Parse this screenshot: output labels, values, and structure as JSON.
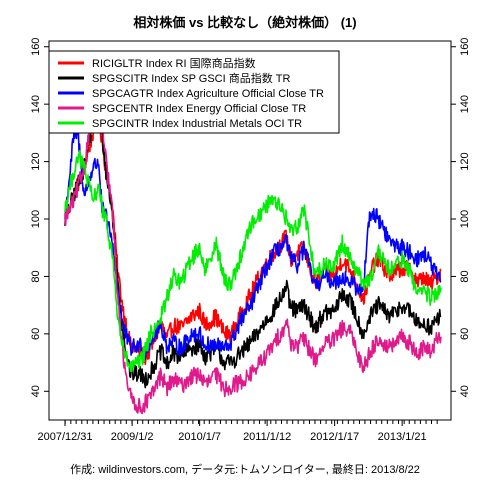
{
  "chart_data": {
    "type": "line",
    "title": "相対株価 vs 比較なし（絶対株価） (1)",
    "caption": "作成: wildinvestors.com, データ元:トムソンロイター, 最終日: 2013/8/22",
    "xlabel": "",
    "ylabel": "",
    "x_range": [
      "2007-12-31",
      "2013-08-22"
    ],
    "ylim": [
      30,
      162
    ],
    "y_ticks": [
      40,
      60,
      80,
      100,
      120,
      140,
      160
    ],
    "x_ticks": [
      {
        "date": "2007-12-31",
        "label": "2007/12/31"
      },
      {
        "date": "2009-01-02",
        "label": "2009/1/2"
      },
      {
        "date": "2010-01-07",
        "label": "2010/1/7"
      },
      {
        "date": "2011-01-12",
        "label": "2011/1/12"
      },
      {
        "date": "2012-01-17",
        "label": "2012/1/17"
      },
      {
        "date": "2013-01-21",
        "label": "2013/1/21"
      }
    ],
    "legend_position": "top-left",
    "grid": false,
    "series": [
      {
        "name": "RICIGLTR Index RI 国際商品指数",
        "color": "#ff0000",
        "points": [
          [
            "2007-12-31",
            100
          ],
          [
            "2008-02-15",
            108
          ],
          [
            "2008-04-15",
            118
          ],
          [
            "2008-06-01",
            130
          ],
          [
            "2008-07-03",
            136
          ],
          [
            "2008-07-20",
            128
          ],
          [
            "2008-08-15",
            115
          ],
          [
            "2008-09-15",
            105
          ],
          [
            "2008-10-15",
            82
          ],
          [
            "2008-11-15",
            68
          ],
          [
            "2008-12-24",
            56
          ],
          [
            "2009-02-15",
            54
          ],
          [
            "2009-03-15",
            52
          ],
          [
            "2009-04-15",
            55
          ],
          [
            "2009-06-10",
            64
          ],
          [
            "2009-07-10",
            58
          ],
          [
            "2009-08-15",
            63
          ],
          [
            "2009-10-01",
            62
          ],
          [
            "2009-11-20",
            66
          ],
          [
            "2010-01-07",
            68
          ],
          [
            "2010-02-08",
            63
          ],
          [
            "2010-04-05",
            66
          ],
          [
            "2010-05-25",
            60
          ],
          [
            "2010-07-01",
            60
          ],
          [
            "2010-08-15",
            66
          ],
          [
            "2010-10-15",
            74
          ],
          [
            "2010-12-31",
            84
          ],
          [
            "2011-02-15",
            88
          ],
          [
            "2011-04-29",
            94
          ],
          [
            "2011-05-20",
            86
          ],
          [
            "2011-06-30",
            88
          ],
          [
            "2011-08-01",
            90
          ],
          [
            "2011-10-04",
            77
          ],
          [
            "2011-11-15",
            82
          ],
          [
            "2012-01-17",
            80
          ],
          [
            "2012-02-28",
            86
          ],
          [
            "2012-04-15",
            82
          ],
          [
            "2012-06-21",
            72
          ],
          [
            "2012-08-15",
            84
          ],
          [
            "2012-09-14",
            86
          ],
          [
            "2012-11-15",
            80
          ],
          [
            "2013-01-21",
            83
          ],
          [
            "2013-03-15",
            82
          ],
          [
            "2013-04-18",
            78
          ],
          [
            "2013-05-20",
            80
          ],
          [
            "2013-06-24",
            77
          ],
          [
            "2013-07-31",
            80
          ],
          [
            "2013-08-22",
            82
          ]
        ]
      },
      {
        "name": "SPGSCITR Index SP GSCI 商品指数 TR",
        "color": "#000000",
        "points": [
          [
            "2007-12-31",
            100
          ],
          [
            "2008-02-15",
            108
          ],
          [
            "2008-04-15",
            118
          ],
          [
            "2008-06-01",
            134
          ],
          [
            "2008-07-03",
            140
          ],
          [
            "2008-07-20",
            130
          ],
          [
            "2008-08-15",
            115
          ],
          [
            "2008-09-15",
            102
          ],
          [
            "2008-10-15",
            78
          ],
          [
            "2008-11-15",
            60
          ],
          [
            "2008-12-24",
            46
          ],
          [
            "2009-02-15",
            46
          ],
          [
            "2009-03-15",
            44
          ],
          [
            "2009-04-15",
            47
          ],
          [
            "2009-06-10",
            54
          ],
          [
            "2009-07-10",
            49
          ],
          [
            "2009-08-15",
            53
          ],
          [
            "2009-10-01",
            52
          ],
          [
            "2009-11-20",
            55
          ],
          [
            "2010-01-07",
            56
          ],
          [
            "2010-02-08",
            52
          ],
          [
            "2010-04-05",
            55
          ],
          [
            "2010-05-25",
            50
          ],
          [
            "2010-07-01",
            50
          ],
          [
            "2010-08-15",
            53
          ],
          [
            "2010-10-15",
            57
          ],
          [
            "2010-12-31",
            64
          ],
          [
            "2011-02-15",
            68
          ],
          [
            "2011-04-29",
            76
          ],
          [
            "2011-05-20",
            69
          ],
          [
            "2011-06-30",
            68
          ],
          [
            "2011-08-01",
            70
          ],
          [
            "2011-10-04",
            62
          ],
          [
            "2011-11-15",
            67
          ],
          [
            "2012-01-17",
            68
          ],
          [
            "2012-02-28",
            74
          ],
          [
            "2012-04-15",
            71
          ],
          [
            "2012-06-21",
            60
          ],
          [
            "2012-08-15",
            68
          ],
          [
            "2012-09-14",
            70
          ],
          [
            "2012-11-15",
            66
          ],
          [
            "2013-01-21",
            70
          ],
          [
            "2013-03-15",
            67
          ],
          [
            "2013-04-18",
            63
          ],
          [
            "2013-05-20",
            64
          ],
          [
            "2013-06-24",
            62
          ],
          [
            "2013-07-31",
            65
          ],
          [
            "2013-08-22",
            66
          ]
        ]
      },
      {
        "name": "SPGCAGTR Index Agriculture Official Close TR",
        "color": "#0000ff",
        "points": [
          [
            "2007-12-31",
            100
          ],
          [
            "2008-02-15",
            128
          ],
          [
            "2008-03-10",
            130
          ],
          [
            "2008-04-15",
            108
          ],
          [
            "2008-06-01",
            118
          ],
          [
            "2008-07-03",
            120
          ],
          [
            "2008-07-20",
            104
          ],
          [
            "2008-08-15",
            100
          ],
          [
            "2008-09-15",
            92
          ],
          [
            "2008-10-15",
            76
          ],
          [
            "2008-11-15",
            62
          ],
          [
            "2008-12-24",
            55
          ],
          [
            "2009-02-15",
            56
          ],
          [
            "2009-03-15",
            54
          ],
          [
            "2009-04-15",
            58
          ],
          [
            "2009-06-10",
            63
          ],
          [
            "2009-07-10",
            56
          ],
          [
            "2009-08-15",
            57
          ],
          [
            "2009-10-01",
            55
          ],
          [
            "2009-11-20",
            60
          ],
          [
            "2010-01-07",
            60
          ],
          [
            "2010-02-08",
            56
          ],
          [
            "2010-04-05",
            56
          ],
          [
            "2010-05-25",
            55
          ],
          [
            "2010-07-01",
            57
          ],
          [
            "2010-08-15",
            64
          ],
          [
            "2010-10-15",
            70
          ],
          [
            "2010-12-31",
            82
          ],
          [
            "2011-02-15",
            88
          ],
          [
            "2011-04-29",
            92
          ],
          [
            "2011-05-20",
            86
          ],
          [
            "2011-06-30",
            84
          ],
          [
            "2011-08-01",
            90
          ],
          [
            "2011-10-04",
            76
          ],
          [
            "2011-11-15",
            80
          ],
          [
            "2012-01-17",
            78
          ],
          [
            "2012-02-28",
            80
          ],
          [
            "2012-04-15",
            78
          ],
          [
            "2012-06-21",
            74
          ],
          [
            "2012-07-20",
            100
          ],
          [
            "2012-08-15",
            102
          ],
          [
            "2012-09-14",
            100
          ],
          [
            "2012-11-15",
            92
          ],
          [
            "2013-01-21",
            90
          ],
          [
            "2013-03-15",
            88
          ],
          [
            "2013-04-18",
            86
          ],
          [
            "2013-05-20",
            88
          ],
          [
            "2013-06-24",
            85
          ],
          [
            "2013-07-31",
            80
          ],
          [
            "2013-08-22",
            78
          ]
        ]
      },
      {
        "name": "SPGCENTR Index Energy Official Close TR",
        "color": "#e0198c",
        "points": [
          [
            "2007-12-31",
            100
          ],
          [
            "2008-02-15",
            106
          ],
          [
            "2008-04-15",
            118
          ],
          [
            "2008-06-01",
            140
          ],
          [
            "2008-07-03",
            146
          ],
          [
            "2008-07-20",
            134
          ],
          [
            "2008-08-15",
            118
          ],
          [
            "2008-09-15",
            104
          ],
          [
            "2008-10-15",
            72
          ],
          [
            "2008-11-15",
            52
          ],
          [
            "2008-12-24",
            38
          ],
          [
            "2009-01-20",
            36
          ],
          [
            "2009-02-15",
            34
          ],
          [
            "2009-03-15",
            36
          ],
          [
            "2009-04-15",
            38
          ],
          [
            "2009-06-10",
            46
          ],
          [
            "2009-07-10",
            41
          ],
          [
            "2009-08-15",
            44
          ],
          [
            "2009-10-01",
            42
          ],
          [
            "2009-11-20",
            45
          ],
          [
            "2010-01-07",
            46
          ],
          [
            "2010-02-08",
            42
          ],
          [
            "2010-04-05",
            46
          ],
          [
            "2010-05-25",
            41
          ],
          [
            "2010-07-01",
            42
          ],
          [
            "2010-08-15",
            43
          ],
          [
            "2010-10-15",
            46
          ],
          [
            "2010-12-31",
            52
          ],
          [
            "2011-02-15",
            56
          ],
          [
            "2011-04-29",
            64
          ],
          [
            "2011-05-20",
            57
          ],
          [
            "2011-06-30",
            56
          ],
          [
            "2011-08-01",
            58
          ],
          [
            "2011-10-04",
            51
          ],
          [
            "2011-11-15",
            56
          ],
          [
            "2012-01-17",
            58
          ],
          [
            "2012-02-28",
            62
          ],
          [
            "2012-04-15",
            60
          ],
          [
            "2012-06-21",
            48
          ],
          [
            "2012-08-15",
            56
          ],
          [
            "2012-09-14",
            58
          ],
          [
            "2012-11-15",
            55
          ],
          [
            "2013-01-21",
            59
          ],
          [
            "2013-03-15",
            56
          ],
          [
            "2013-04-18",
            53
          ],
          [
            "2013-05-20",
            55
          ],
          [
            "2013-06-24",
            54
          ],
          [
            "2013-07-31",
            58
          ],
          [
            "2013-08-22",
            59
          ]
        ]
      },
      {
        "name": "SPGCINTR Index Industrial Metals OCI TR",
        "color": "#00ee00",
        "points": [
          [
            "2007-12-31",
            104
          ],
          [
            "2008-02-15",
            116
          ],
          [
            "2008-03-10",
            122
          ],
          [
            "2008-04-15",
            118
          ],
          [
            "2008-06-01",
            106
          ],
          [
            "2008-07-03",
            112
          ],
          [
            "2008-07-20",
            104
          ],
          [
            "2008-08-15",
            98
          ],
          [
            "2008-09-15",
            88
          ],
          [
            "2008-10-15",
            66
          ],
          [
            "2008-11-15",
            54
          ],
          [
            "2008-12-24",
            48
          ],
          [
            "2009-02-15",
            50
          ],
          [
            "2009-03-15",
            54
          ],
          [
            "2009-04-15",
            60
          ],
          [
            "2009-06-10",
            66
          ],
          [
            "2009-07-10",
            72
          ],
          [
            "2009-08-15",
            80
          ],
          [
            "2009-10-01",
            78
          ],
          [
            "2009-11-20",
            86
          ],
          [
            "2010-01-07",
            90
          ],
          [
            "2010-02-08",
            82
          ],
          [
            "2010-04-05",
            92
          ],
          [
            "2010-05-25",
            78
          ],
          [
            "2010-07-01",
            78
          ],
          [
            "2010-08-15",
            86
          ],
          [
            "2010-10-15",
            98
          ],
          [
            "2010-12-31",
            104
          ],
          [
            "2011-02-15",
            108
          ],
          [
            "2011-04-29",
            100
          ],
          [
            "2011-05-20",
            96
          ],
          [
            "2011-06-30",
            98
          ],
          [
            "2011-08-01",
            104
          ],
          [
            "2011-10-04",
            80
          ],
          [
            "2011-11-15",
            84
          ],
          [
            "2012-01-17",
            84
          ],
          [
            "2012-02-28",
            92
          ],
          [
            "2012-04-15",
            86
          ],
          [
            "2012-06-21",
            78
          ],
          [
            "2012-08-15",
            80
          ],
          [
            "2012-09-14",
            88
          ],
          [
            "2012-11-15",
            82
          ],
          [
            "2013-01-21",
            86
          ],
          [
            "2013-03-15",
            80
          ],
          [
            "2013-04-18",
            74
          ],
          [
            "2013-05-20",
            76
          ],
          [
            "2013-06-24",
            72
          ],
          [
            "2013-07-31",
            74
          ],
          [
            "2013-08-22",
            76
          ]
        ]
      }
    ]
  }
}
